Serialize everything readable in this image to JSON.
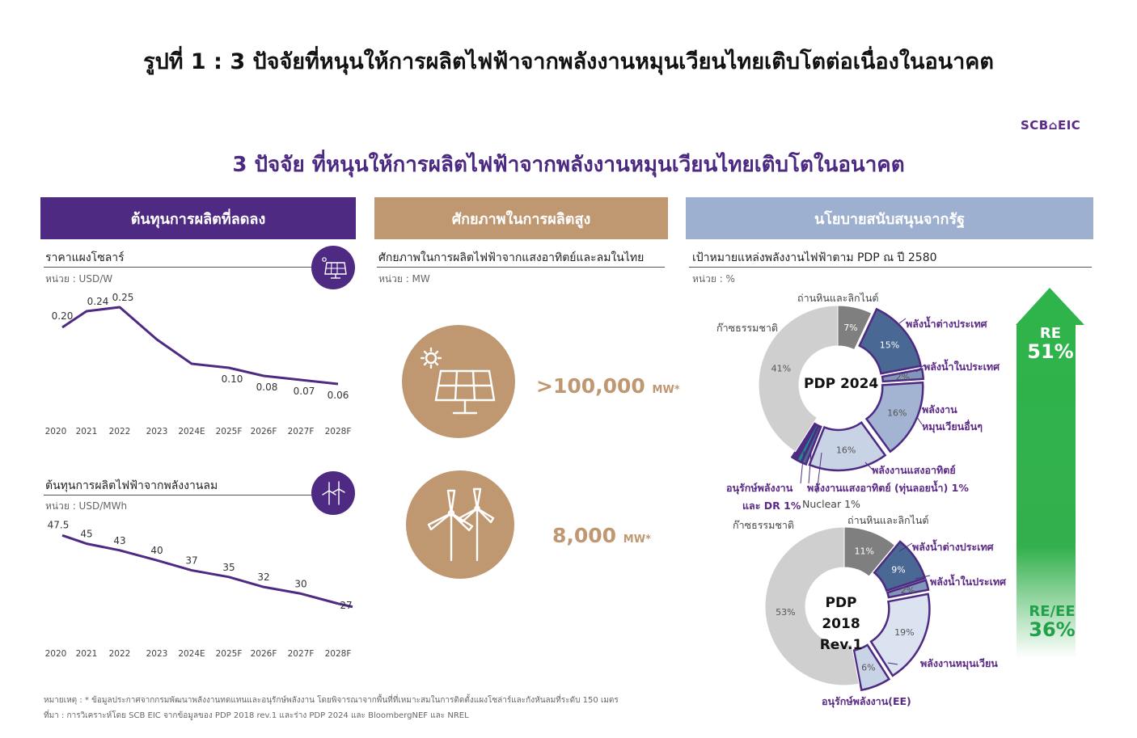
{
  "figure_title": "รูปที่ 1 : 3 ปัจจัยที่หนุนให้การผลิตไฟฟ้าจากพลังงานหมุนเวียนไทยเติบโตต่อเนื่องในอนาคต",
  "brand": "SCB⌂EIC",
  "main_title": "3 ปัจจัย ที่หนุนให้การผลิตไฟฟ้าจากพลังงานหมุนเวียนไทยเติบโตในอนาคต",
  "headers": [
    "ต้นทุนการผลิตที่ลดลง",
    "ศักยภาพในการผลิตสูง",
    "นโยบายสนับสนุนจากรัฐ"
  ],
  "panel1": {
    "solar_title": "ราคาแผงโซลาร์",
    "solar_unit": "หน่วย : USD/W",
    "wind_title": "ต้นทุนการผลิตไฟฟ้าจากพลังงานลม",
    "wind_unit": "หน่วย : USD/MWh",
    "icon1": "solar-panel-icon",
    "icon2": "wind-turbine-icon"
  },
  "panel2": {
    "title": "ศักยภาพในการผลิตไฟฟ้าจากแสงอาทิตย์และลมในไทย",
    "unit": "หน่วย : MW",
    "solar_value": ">100,000",
    "wind_value": "8,000",
    "value_unit": "MW*"
  },
  "panel3": {
    "title": "เป้าหมายแหล่งพลังงานไฟฟ้าตาม PDP ณ ปี 2580",
    "unit": "หน่วย : %",
    "re_label": "RE",
    "re_value": "51%",
    "reee_label": "RE/EE",
    "reee_value": "36%"
  },
  "chart_data": [
    {
      "type": "line",
      "title": "ราคาแผงโซลาร์",
      "ylabel": "หน่วย : USD/W",
      "x": [
        "2020",
        "2021",
        "2022",
        "2023",
        "2024E",
        "2025F",
        "2026F",
        "2027F",
        "2028F"
      ],
      "values": [
        0.2,
        0.24,
        0.25,
        0.17,
        0.11,
        0.1,
        0.08,
        0.07,
        0.06
      ],
      "labels": [
        "0.20",
        "0.24",
        "0.25",
        "",
        "",
        "0.10",
        "0.08",
        "0.07",
        "0.06"
      ],
      "color": "#4e2a82"
    },
    {
      "type": "line",
      "title": "ต้นทุนการผลิตไฟฟ้าจากพลังงานลม",
      "ylabel": "หน่วย : USD/MWh",
      "x": [
        "2020",
        "2021",
        "2022",
        "2023",
        "2024E",
        "2025F",
        "2026F",
        "2027F",
        "2028F"
      ],
      "values": [
        47.5,
        45,
        43,
        40,
        37,
        35,
        32,
        30,
        27
      ],
      "labels": [
        "47.5",
        "45",
        "43",
        "40",
        "37",
        "35",
        "32",
        "30",
        "27"
      ],
      "color": "#4e2a82"
    },
    {
      "type": "pie",
      "title": "PDP 2024",
      "slices": [
        {
          "label": "ถ่านหินและลิกไนต์",
          "value": 7,
          "text": "7%",
          "color": "#7f7f7f"
        },
        {
          "label": "พลังน้ำต่างประเทศ",
          "value": 15,
          "text": "15%",
          "color": "#4a6894"
        },
        {
          "label": "พลังน้ำในประเทศ",
          "value": 2,
          "text": "2%",
          "color": "#8296bb"
        },
        {
          "label": "พลังงานหมุนเวียนอื่นๆ",
          "value": 16,
          "text": "16%",
          "color": "#a3b4d2"
        },
        {
          "label": "พลังงานแสงอาทิตย์",
          "value": 16,
          "text": "16%",
          "color": "#c9d3e6"
        },
        {
          "label": "พลังงานแสงอาทิตย์ (ทุ่นลอยน้ำ)",
          "value": 1,
          "text": "1%",
          "color": "#4a6894"
        },
        {
          "label": "Nuclear",
          "value": 1,
          "text": "1%",
          "color": "#1b8a8a"
        },
        {
          "label": "อนุรักษ์พลังงานและ DR",
          "value": 1,
          "text": "1%",
          "color": "#4e2a82"
        },
        {
          "label": "ก๊าซธรรมชาติ",
          "value": 41,
          "text": "41%",
          "color": "#cfcfcf"
        }
      ]
    },
    {
      "type": "pie",
      "title": "PDP 2018 Rev.1",
      "slices": [
        {
          "label": "ถ่านหินและลิกไนต์",
          "value": 11,
          "text": "11%",
          "color": "#7f7f7f"
        },
        {
          "label": "พลังน้ำต่างประเทศ",
          "value": 9,
          "text": "9%",
          "color": "#4a6894"
        },
        {
          "label": "พลังน้ำในประเทศ",
          "value": 2,
          "text": "2%",
          "color": "#8296bb"
        },
        {
          "label": "พลังงานหมุนเวียน",
          "value": 19,
          "text": "19%",
          "color": "#dbe3f0"
        },
        {
          "label": "อนุรักษ์พลังงาน(EE)",
          "value": 6,
          "text": "6%",
          "color": "#c9d3e6"
        },
        {
          "label": "ก๊าซธรรมชาติ",
          "value": 53,
          "text": "53%",
          "color": "#cfcfcf"
        }
      ]
    }
  ],
  "pie_labels": {
    "p1": {
      "coal": "ถ่านหินและลิกไนต์",
      "gas": "ก๊าซธรรมชาติ",
      "hydro_foreign": "พลังน้ำต่างประเทศ",
      "hydro_domestic": "พลังน้ำในประเทศ",
      "other_re_1": "พลังงาน",
      "other_re_2": "หมุนเวียนอื่นๆ",
      "solar": "พลังงานแสงอาทิตย์",
      "floating": "พลังงานแสงอาทิตย์ (ทุ่นลอยน้ำ) 1%",
      "conservation_1": "อนุรักษ์พลังงาน",
      "conservation_2": "และ DR 1%",
      "nuclear": "Nuclear 1%",
      "center": "PDP 2024"
    },
    "p2": {
      "coal": "ถ่านหินและลิกไนต์",
      "gas": "ก๊าซธรรมชาติ",
      "hydro_foreign": "พลังน้ำต่างประเทศ",
      "hydro_domestic": "พลังน้ำในประเทศ",
      "re": "พลังงานหมุนเวียน",
      "ee": "อนุรักษ์พลังงาน(EE)",
      "center_1": "PDP 2018",
      "center_2": "Rev.1"
    }
  },
  "footnote": "หมายเหตุ : * ข้อมูลประกาศจากกรมพัฒนาพลังงานทดแทนและอนุรักษ์พลังงาน โดยพิจารณาจากพื้นที่ที่เหมาะสมในการติดตั้งแผงโซล่าร์และกังหันลมที่ระดับ 150 เมตร",
  "source": "ที่มา : การวิเคราะห์โดย SCB EIC จากข้อมูลของ PDP 2018 rev.1 และร่าง PDP 2024 และ BloombergNEF และ NREL"
}
